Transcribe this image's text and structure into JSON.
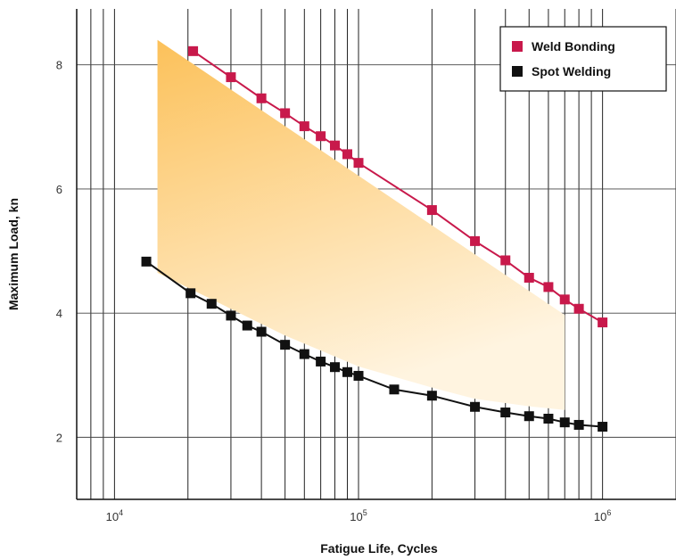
{
  "chart_data": {
    "type": "line",
    "title": "",
    "xlabel": "Fatigue Life, Cycles",
    "ylabel": "Maximum Load, kn",
    "x_scale": "log",
    "xlim": [
      7000,
      2000000
    ],
    "ylim": [
      1,
      8.9
    ],
    "x_ticks": [
      10000,
      100000,
      1000000
    ],
    "x_tick_labels": [
      {
        "base": "10",
        "exp": "4"
      },
      {
        "base": "10",
        "exp": "5"
      },
      {
        "base": "10",
        "exp": "6"
      }
    ],
    "y_ticks": [
      2,
      4,
      6,
      8
    ],
    "y_tick_labels": [
      "2",
      "4",
      "6",
      "8"
    ],
    "grid": true,
    "legend": "top-right",
    "series": [
      {
        "name": "Weld Bonding",
        "color": "#c8194b",
        "x": [
          21000,
          30000,
          40000,
          50000,
          60000,
          70000,
          80000,
          90000,
          100000,
          200000,
          300000,
          400000,
          500000,
          600000,
          700000,
          800000,
          1000000
        ],
        "y": [
          8.22,
          7.8,
          7.46,
          7.22,
          7.01,
          6.85,
          6.7,
          6.56,
          6.42,
          5.66,
          5.16,
          4.85,
          4.57,
          4.42,
          4.22,
          4.07,
          3.85
        ]
      },
      {
        "name": "Spot Welding",
        "color": "#111111",
        "x": [
          13500,
          20500,
          25000,
          30000,
          35000,
          40000,
          50000,
          60000,
          70000,
          80000,
          90000,
          100000,
          140000,
          200000,
          300000,
          400000,
          500000,
          600000,
          700000,
          800000,
          1000000
        ],
        "y": [
          4.83,
          4.32,
          4.15,
          3.96,
          3.8,
          3.7,
          3.49,
          3.34,
          3.22,
          3.13,
          3.05,
          2.99,
          2.77,
          2.67,
          2.49,
          2.4,
          2.34,
          2.3,
          2.24,
          2.2,
          2.17
        ]
      }
    ],
    "shaded_band": {
      "color_top": "#fcc15a",
      "color_bottom": "#fff4e0",
      "upper": {
        "x": [
          15000,
          700000
        ],
        "y": [
          8.4,
          3.97
        ]
      },
      "lower": {
        "x": [
          15000,
          50000,
          100000,
          200000,
          300000,
          500000,
          700000
        ],
        "y": [
          4.65,
          3.64,
          3.14,
          2.8,
          2.62,
          2.5,
          2.44
        ]
      }
    }
  }
}
